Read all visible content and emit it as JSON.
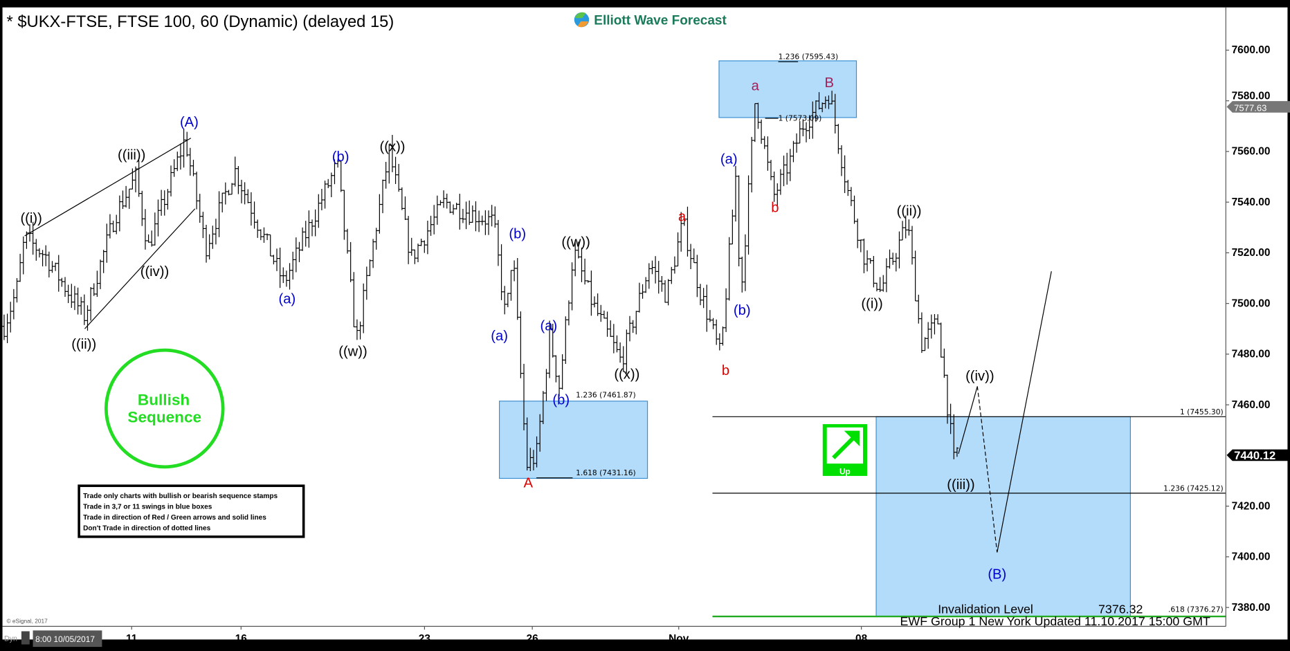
{
  "header": {
    "title": "* $UKX-FTSE, FTSE 100, 60 (Dynamic) (delayed 15)",
    "brand": "Elliott Wave Forecast"
  },
  "stamp": {
    "line1": "Bullish",
    "line2": "Sequence",
    "color": "#22dd22"
  },
  "rules": [
    "Trade only charts with bullish or bearish sequence stamps",
    "Trade in 3,7 or 11 swings in blue boxes",
    "Trade in direction of Red / Green arrows and solid lines",
    "Don't Trade in direction of dotted lines"
  ],
  "up_icon": {
    "label": "Up",
    "icon": "arrow-up-right-icon",
    "color": "#00e000"
  },
  "footer": {
    "copyright": "© eSignal, 2017",
    "updated": "EWF Group 1 New York Updated 11.10.2017 15:00 GMT",
    "dyn": "Dyn",
    "start_date": "8:00 10/05/2017"
  },
  "invalidation": {
    "label": "Invalidation Level",
    "value": "7376.32"
  },
  "colors": {
    "blue_box": "#b3dcfb",
    "blue_box_border": "#3a8fd0",
    "wave_blue": "#0000cc",
    "wave_red": "#dd0000",
    "wave_maroon": "#a0205a",
    "invalidation_line": "#22aa22"
  },
  "chart_data": {
    "type": "ohlc-bar",
    "interval": "60 min",
    "ylim": [
      7370,
      7615
    ],
    "yticks": [
      "7600.00",
      "7580.00",
      "7560.00",
      "7540.00",
      "7520.00",
      "7500.00",
      "7480.00",
      "7460.00",
      "7440.00",
      "7420.00",
      "7400.00",
      "7380.00"
    ],
    "xticks": [
      "11",
      "16",
      "23",
      "26",
      "Nov",
      "08"
    ],
    "price_tags": [
      {
        "value": "7577.63",
        "style": "grey"
      },
      {
        "value": "7440.12",
        "style": "black"
      }
    ],
    "swing_path": [
      7491,
      7505,
      7526,
      7519,
      7506,
      7495,
      7535,
      7550,
      7522,
      7565,
      7522,
      7553,
      7508,
      7555,
      7485,
      7560,
      7518,
      7540,
      7532,
      7493,
      7522,
      7436,
      7440,
      7487,
      7467,
      7521,
      7500,
      7477,
      7516,
      7503,
      7532,
      7506,
      7479,
      7553,
      7500,
      7581,
      7542,
      7556,
      7570,
      7583,
      7545,
      7519,
      7505,
      7532,
      7484,
      7493,
      7436,
      7445
    ],
    "fib_levels": [
      {
        "label": "1.236 (7595.43)",
        "price": 7595.43
      },
      {
        "label": "1 (7573.09)",
        "price": 7573.09
      },
      {
        "label": "1.236 (7461.87)",
        "price": 7461.87
      },
      {
        "label": "1.618 (7431.16)",
        "price": 7431.16
      },
      {
        "label": "1 (7455.30)",
        "price": 7455.3
      },
      {
        "label": "1.236 (7425.12)",
        "price": 7425.12
      },
      {
        "label": ".618 (7376.27)",
        "price": 7376.27
      }
    ],
    "wave_labels": [
      "(A)",
      "((iii))",
      "((i))",
      "((ii))",
      "((iv))",
      "(b)",
      "(a)",
      "((w))",
      "((x))",
      "(b)",
      "(a)",
      "(a)",
      "(b)",
      "A",
      "((w))",
      "((x))",
      "a",
      "b",
      "(a)",
      "(b)",
      "a",
      "b",
      "B",
      "((ii))",
      "((i))",
      "((iii))",
      "((iv))",
      "(B)"
    ]
  }
}
